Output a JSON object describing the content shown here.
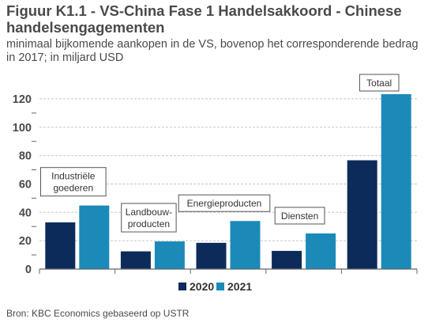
{
  "title": "Figuur K1.1 - VS-China Fase 1 Handelsakkoord - Chinese handelsengagementen",
  "subtitle": "minimaal bijkomende aankopen in de VS, bovenop het corresponderende bedrag in 2017; in miljard USD",
  "source": "Bron: KBC Economics gebaseerd op USTR",
  "colors": {
    "s2020": "#0d2b5a",
    "s2021": "#1b8ab8",
    "grid": "#c8c8c8",
    "axis": "#666666"
  },
  "chart_data": {
    "type": "bar",
    "categories": [
      "Industriële goederen",
      "Landbouw- producten",
      "Energieproducten",
      "Diensten",
      "Totaal"
    ],
    "category_labels": [
      [
        "Industriële",
        "goederen"
      ],
      [
        "Landbouw-",
        "producten"
      ],
      [
        "Energieproducten"
      ],
      [
        "Diensten"
      ],
      [
        "Totaal"
      ]
    ],
    "series": [
      {
        "name": "2020",
        "values": [
          32.9,
          12.5,
          18.5,
          12.8,
          76.7
        ]
      },
      {
        "name": "2021",
        "values": [
          44.8,
          19.5,
          33.9,
          25.1,
          123.3
        ]
      }
    ],
    "ylim": [
      0,
      130
    ],
    "yticks": [
      0,
      20,
      40,
      60,
      80,
      100,
      120
    ],
    "grid": true,
    "legend_position": "bottom"
  }
}
